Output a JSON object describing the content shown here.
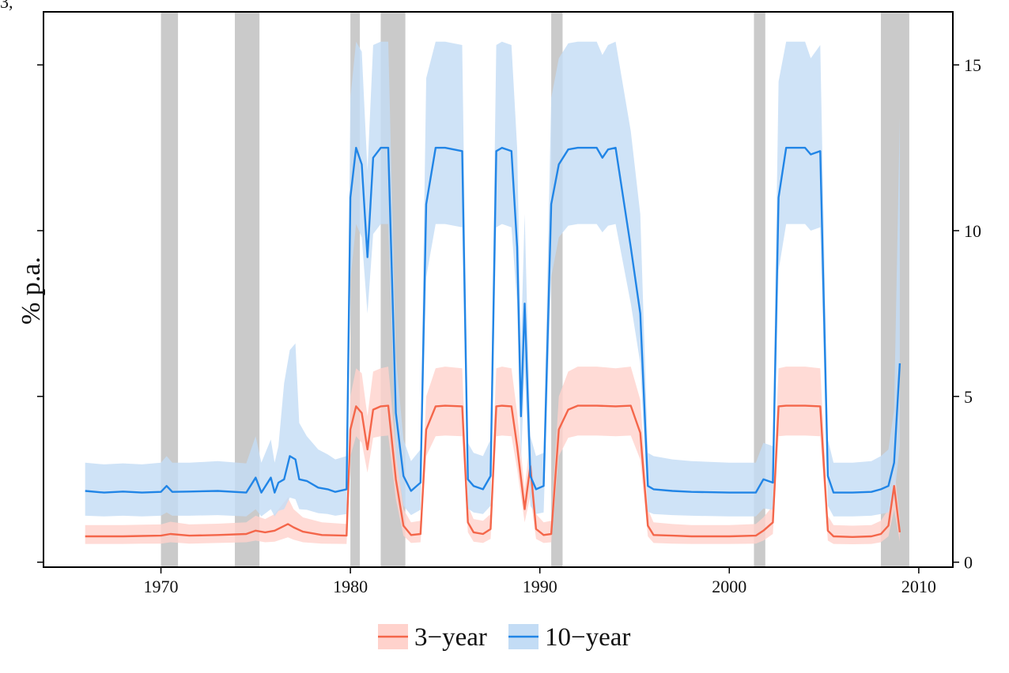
{
  "corner_text": "3, ",
  "chart_data": {
    "type": "area",
    "title": "",
    "xlabel": "",
    "ylabel": "% p.a.",
    "xlim": [
      1963.8,
      2011.8
    ],
    "ylim": [
      -0.15,
      16.6
    ],
    "x_ticks": [
      1970,
      1980,
      1990,
      2000,
      2010
    ],
    "y_ticks": [
      0,
      5,
      10,
      15
    ],
    "y_axis_side": "right",
    "grid": false,
    "legend_position": "bottom",
    "recessions": [
      [
        1970.0,
        1970.9
      ],
      [
        1973.9,
        1975.2
      ],
      [
        1980.0,
        1980.5
      ],
      [
        1981.6,
        1982.9
      ],
      [
        1990.6,
        1991.2
      ],
      [
        2001.3,
        2001.9
      ],
      [
        2008.0,
        2009.5
      ]
    ],
    "series": [
      {
        "name": "3−year",
        "color": "#f4664a",
        "band_color": "#ffd2cc",
        "x": [
          1966.0,
          1967.0,
          1968.0,
          1969.0,
          1970.0,
          1970.5,
          1971.5,
          1973.0,
          1974.5,
          1975.0,
          1975.5,
          1976.0,
          1976.7,
          1977.0,
          1977.5,
          1978.5,
          1979.8,
          1980.0,
          1980.3,
          1980.6,
          1980.9,
          1981.2,
          1981.6,
          1982.0,
          1982.4,
          1982.8,
          1983.2,
          1983.7,
          1984.0,
          1984.5,
          1985.0,
          1985.9,
          1986.2,
          1986.5,
          1987.0,
          1987.4,
          1987.7,
          1988.0,
          1988.5,
          1988.8,
          1989.2,
          1989.5,
          1989.8,
          1990.2,
          1990.6,
          1991.0,
          1991.5,
          1992.0,
          1993.0,
          1994.0,
          1994.8,
          1995.3,
          1995.7,
          1996.0,
          1997.0,
          1998.0,
          2000.0,
          2001.4,
          2001.8,
          2002.3,
          2002.6,
          2003.0,
          2004.0,
          2004.8,
          2005.2,
          2005.5,
          2006.5,
          2007.5,
          2008.0,
          2008.4,
          2008.7,
          2009.0
        ],
        "values": [
          0.78,
          0.78,
          0.78,
          0.79,
          0.8,
          0.85,
          0.8,
          0.82,
          0.85,
          0.95,
          0.9,
          0.95,
          1.15,
          1.05,
          0.92,
          0.82,
          0.8,
          4.0,
          4.7,
          4.5,
          3.4,
          4.6,
          4.7,
          4.72,
          2.5,
          1.1,
          0.82,
          0.85,
          4.0,
          4.7,
          4.72,
          4.7,
          1.2,
          0.9,
          0.85,
          1.0,
          4.7,
          4.72,
          4.7,
          3.5,
          1.6,
          2.9,
          1.0,
          0.82,
          0.85,
          4.0,
          4.6,
          4.72,
          4.72,
          4.7,
          4.72,
          3.9,
          1.1,
          0.82,
          0.8,
          0.78,
          0.78,
          0.8,
          0.95,
          1.2,
          4.7,
          4.72,
          4.72,
          4.7,
          0.95,
          0.78,
          0.76,
          0.78,
          0.85,
          1.1,
          2.3,
          0.9
        ],
        "lower": [
          0.55,
          0.55,
          0.55,
          0.56,
          0.56,
          0.6,
          0.56,
          0.58,
          0.6,
          0.65,
          0.6,
          0.62,
          0.75,
          0.68,
          0.6,
          0.56,
          0.55,
          3.2,
          3.8,
          3.6,
          2.7,
          3.75,
          3.8,
          3.82,
          1.9,
          0.8,
          0.58,
          0.6,
          3.2,
          3.8,
          3.82,
          3.8,
          0.9,
          0.62,
          0.58,
          0.7,
          3.8,
          3.82,
          3.8,
          2.8,
          1.2,
          2.0,
          0.7,
          0.58,
          0.6,
          3.2,
          3.75,
          3.82,
          3.82,
          3.8,
          3.82,
          3.1,
          0.78,
          0.58,
          0.56,
          0.55,
          0.55,
          0.56,
          0.65,
          0.85,
          3.8,
          3.82,
          3.82,
          3.8,
          0.65,
          0.55,
          0.54,
          0.55,
          0.6,
          0.78,
          1.6,
          0.62
        ],
        "upper": [
          1.12,
          1.12,
          1.12,
          1.13,
          1.14,
          1.22,
          1.14,
          1.16,
          1.2,
          1.4,
          1.3,
          1.45,
          1.95,
          1.6,
          1.35,
          1.2,
          1.15,
          5.0,
          5.85,
          5.7,
          4.4,
          5.75,
          5.85,
          5.9,
          3.4,
          1.6,
          1.2,
          1.25,
          5.0,
          5.85,
          5.9,
          5.85,
          1.7,
          1.3,
          1.25,
          1.45,
          5.85,
          5.9,
          5.85,
          4.5,
          2.2,
          3.8,
          1.45,
          1.2,
          1.25,
          5.0,
          5.75,
          5.9,
          5.9,
          5.85,
          5.9,
          4.9,
          1.6,
          1.2,
          1.15,
          1.12,
          1.12,
          1.15,
          1.35,
          1.7,
          5.85,
          5.9,
          5.9,
          5.85,
          1.4,
          1.12,
          1.1,
          1.12,
          1.25,
          1.6,
          2.9,
          1.3
        ]
      },
      {
        "name": "10−year",
        "color": "#2185e6",
        "band_color": "#c3dcf5",
        "x": [
          1966.0,
          1967.0,
          1968.0,
          1969.0,
          1970.0,
          1970.3,
          1970.6,
          1971.5,
          1973.0,
          1974.5,
          1975.0,
          1975.3,
          1975.8,
          1976.0,
          1976.2,
          1976.5,
          1976.8,
          1977.1,
          1977.3,
          1977.7,
          1978.3,
          1978.8,
          1979.2,
          1979.8,
          1980.0,
          1980.3,
          1980.6,
          1980.9,
          1981.2,
          1981.6,
          1982.0,
          1982.4,
          1982.8,
          1983.2,
          1983.7,
          1984.0,
          1984.5,
          1985.0,
          1985.9,
          1986.2,
          1986.5,
          1987.0,
          1987.4,
          1987.7,
          1988.0,
          1988.5,
          1988.8,
          1989.0,
          1989.2,
          1989.5,
          1989.8,
          1990.2,
          1990.6,
          1991.0,
          1991.5,
          1992.0,
          1993.0,
          1993.3,
          1993.6,
          1994.0,
          1994.8,
          1995.3,
          1995.7,
          1996.0,
          1997.0,
          1998.0,
          2000.0,
          2001.4,
          2001.8,
          2002.3,
          2002.6,
          2003.0,
          2004.0,
          2004.3,
          2004.8,
          2005.2,
          2005.5,
          2006.5,
          2007.5,
          2008.0,
          2008.4,
          2008.7,
          2009.0
        ],
        "values": [
          2.15,
          2.1,
          2.13,
          2.1,
          2.12,
          2.3,
          2.12,
          2.13,
          2.15,
          2.1,
          2.55,
          2.1,
          2.55,
          2.1,
          2.4,
          2.5,
          3.2,
          3.1,
          2.5,
          2.45,
          2.25,
          2.2,
          2.12,
          2.2,
          11.0,
          12.5,
          12.0,
          9.2,
          12.2,
          12.5,
          12.5,
          4.5,
          2.6,
          2.15,
          2.4,
          10.8,
          12.5,
          12.5,
          12.4,
          2.5,
          2.3,
          2.2,
          2.6,
          12.4,
          12.5,
          12.4,
          9.5,
          4.4,
          7.8,
          2.6,
          2.2,
          2.3,
          10.8,
          12.0,
          12.45,
          12.5,
          12.5,
          12.2,
          12.45,
          12.5,
          9.5,
          7.5,
          2.3,
          2.2,
          2.15,
          2.12,
          2.1,
          2.1,
          2.5,
          2.4,
          11.0,
          12.5,
          12.5,
          12.3,
          12.4,
          2.6,
          2.1,
          2.1,
          2.12,
          2.2,
          2.3,
          3.0,
          6.0
        ],
        "lower": [
          1.4,
          1.38,
          1.4,
          1.38,
          1.4,
          1.5,
          1.4,
          1.4,
          1.42,
          1.38,
          1.6,
          1.38,
          1.6,
          1.38,
          1.55,
          1.6,
          1.95,
          1.9,
          1.6,
          1.58,
          1.48,
          1.45,
          1.4,
          1.45,
          8.5,
          10.2,
          9.8,
          7.5,
          9.9,
          10.2,
          10.2,
          3.2,
          1.7,
          1.42,
          1.58,
          8.6,
          10.2,
          10.2,
          10.1,
          1.62,
          1.5,
          1.45,
          1.7,
          10.1,
          10.2,
          10.1,
          7.8,
          3.0,
          5.8,
          1.7,
          1.45,
          1.5,
          8.6,
          9.8,
          10.15,
          10.2,
          10.2,
          9.95,
          10.15,
          10.2,
          7.8,
          6.0,
          1.52,
          1.45,
          1.42,
          1.4,
          1.38,
          1.38,
          1.62,
          1.58,
          8.8,
          10.2,
          10.2,
          10.0,
          10.1,
          1.7,
          1.38,
          1.38,
          1.4,
          1.45,
          1.5,
          1.95,
          3.5
        ],
        "upper": [
          3.0,
          2.95,
          2.98,
          2.95,
          3.0,
          3.2,
          3.0,
          3.0,
          3.05,
          2.98,
          3.8,
          3.0,
          3.7,
          3.0,
          3.5,
          5.4,
          6.4,
          6.6,
          4.2,
          3.8,
          3.4,
          3.25,
          3.1,
          3.2,
          14.0,
          15.7,
          15.4,
          11.8,
          15.6,
          15.7,
          15.7,
          6.2,
          3.7,
          3.05,
          3.4,
          14.6,
          15.7,
          15.7,
          15.6,
          3.6,
          3.3,
          3.2,
          3.7,
          15.6,
          15.7,
          15.6,
          12.5,
          6.5,
          10.5,
          3.8,
          3.2,
          3.3,
          14.0,
          15.2,
          15.65,
          15.7,
          15.7,
          15.3,
          15.6,
          15.7,
          13.0,
          10.5,
          3.3,
          3.2,
          3.1,
          3.05,
          3.0,
          3.0,
          3.6,
          3.5,
          14.5,
          15.7,
          15.7,
          15.2,
          15.6,
          3.7,
          3.0,
          3.0,
          3.05,
          3.2,
          3.4,
          4.6,
          13.4
        ]
      }
    ]
  }
}
